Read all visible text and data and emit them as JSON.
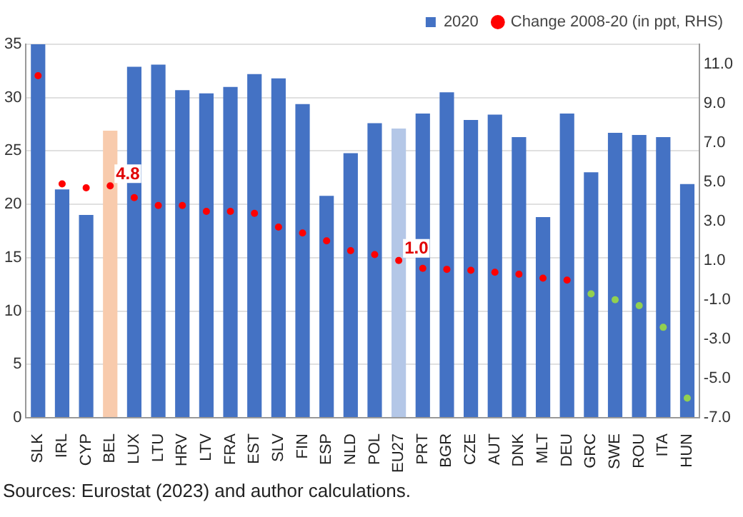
{
  "chart_data": {
    "type": "bar",
    "categories": [
      "SLK",
      "IRL",
      "CYP",
      "BEL",
      "LUX",
      "LTU",
      "HRV",
      "LTV",
      "FRA",
      "EST",
      "SLV",
      "FIN",
      "ESP",
      "NLD",
      "POL",
      "EU27",
      "PRT",
      "BGR",
      "CZE",
      "AUT",
      "DNK",
      "MLT",
      "DEU",
      "GRC",
      "SWE",
      "ROU",
      "ITA",
      "HUN"
    ],
    "series": [
      {
        "name": "2020",
        "color": "#4472c4",
        "colors": [
          "#4472c4",
          "#4472c4",
          "#4472c4",
          "#f8cbad",
          "#4472c4",
          "#4472c4",
          "#4472c4",
          "#4472c4",
          "#4472c4",
          "#4472c4",
          "#4472c4",
          "#4472c4",
          "#4472c4",
          "#4472c4",
          "#4472c4",
          "#b4c7e7",
          "#4472c4",
          "#4472c4",
          "#4472c4",
          "#4472c4",
          "#4472c4",
          "#4472c4",
          "#4472c4",
          "#4472c4",
          "#4472c4",
          "#4472c4",
          "#4472c4",
          "#4472c4"
        ],
        "values": [
          35,
          21.4,
          19.0,
          26.9,
          32.9,
          33.1,
          30.7,
          30.4,
          31.0,
          32.2,
          31.8,
          29.4,
          20.8,
          24.8,
          27.6,
          27.1,
          28.5,
          30.5,
          27.9,
          28.4,
          26.3,
          18.8,
          28.5,
          23.0,
          26.7,
          26.5,
          26.3,
          21.9
        ]
      },
      {
        "name": "Change 2008-20 (in ppt, RHS)",
        "type": "scatter",
        "axis": "y2",
        "color": "#ff0000",
        "colors": [
          "#ff0000",
          "#ff0000",
          "#ff0000",
          "#ff0000",
          "#ff0000",
          "#ff0000",
          "#ff0000",
          "#ff0000",
          "#ff0000",
          "#ff0000",
          "#ff0000",
          "#ff0000",
          "#ff0000",
          "#ff0000",
          "#ff0000",
          "#ff0000",
          "#ff0000",
          "#ff0000",
          "#ff0000",
          "#ff0000",
          "#ff0000",
          "#ff0000",
          "#ff0000",
          "#92d050",
          "#92d050",
          "#92d050",
          "#92d050",
          "#92d050"
        ],
        "values": [
          10.4,
          4.9,
          4.7,
          4.8,
          4.2,
          3.8,
          3.8,
          3.5,
          3.5,
          3.4,
          2.7,
          2.4,
          2.0,
          1.5,
          1.3,
          1.0,
          0.6,
          0.55,
          0.5,
          0.4,
          0.3,
          0.1,
          0.0,
          -0.7,
          -1.0,
          -1.3,
          -2.4,
          -6.0
        ],
        "value_labels": [
          null,
          null,
          null,
          "4.8",
          null,
          null,
          null,
          null,
          null,
          null,
          null,
          null,
          null,
          null,
          null,
          "1.0",
          null,
          null,
          null,
          null,
          null,
          null,
          null,
          null,
          null,
          null,
          null,
          null
        ]
      }
    ],
    "ylim": [
      0,
      35
    ],
    "yticks": [
      0,
      5,
      10,
      15,
      20,
      25,
      30,
      35
    ],
    "y2lim": [
      -7,
      12
    ],
    "y2ticks": [
      {
        "value": -7,
        "label": "-7.0"
      },
      {
        "value": -5,
        "label": "-5.0"
      },
      {
        "value": -3,
        "label": "-3.0"
      },
      {
        "value": -1,
        "label": "-1.0"
      },
      {
        "value": 1,
        "label": "1.0"
      },
      {
        "value": 3,
        "label": "3.0"
      },
      {
        "value": 5,
        "label": "5.0"
      },
      {
        "value": 7,
        "label": "7.0"
      },
      {
        "value": 9,
        "label": "9.0"
      },
      {
        "value": 11,
        "label": "11.0"
      }
    ],
    "grid": "y",
    "legend": "top right",
    "marker": "circle",
    "annotations": [
      "Sources: Eurostat (2023) and author calculations."
    ]
  }
}
